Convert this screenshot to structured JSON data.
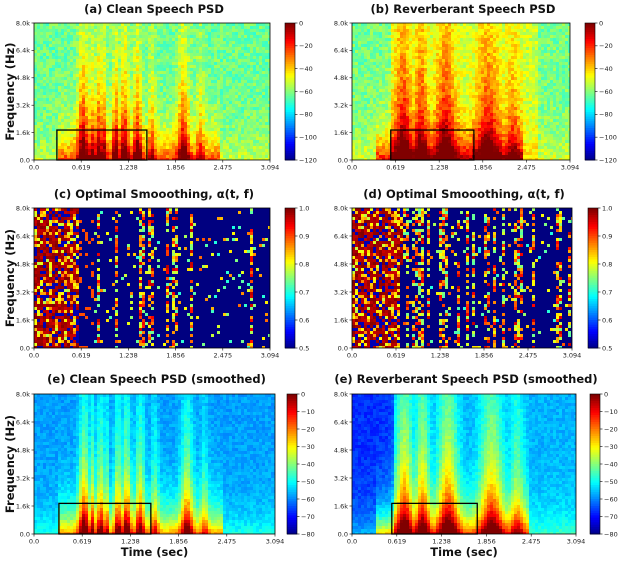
{
  "chart_data": [
    {
      "id": "a",
      "type": "heatmap",
      "title": "(a) Clean Speech PSD",
      "ylabel": "Frequency (Hz)",
      "xlabel": "",
      "x_ticks": [
        "0.0",
        "0.619",
        "1.238",
        "1.856",
        "2.475",
        "3.094"
      ],
      "y_ticks": [
        "0.0",
        "1.6k",
        "3.2k",
        "4.8k",
        "6.4k",
        "8.0k"
      ],
      "xlim": [
        0,
        3.094
      ],
      "ylim": [
        0,
        8000
      ],
      "colorbar": {
        "ticks": [
          0,
          -20,
          -40,
          -60,
          -80,
          -100,
          -120
        ],
        "range": [
          -120,
          0
        ],
        "colormap": "jet"
      },
      "highlight_box": {
        "x": [
          0.3,
          1.48
        ],
        "y": [
          0,
          1750
        ]
      }
    },
    {
      "id": "b",
      "type": "heatmap",
      "title": "(b) Reverberant Speech PSD",
      "ylabel": "",
      "xlabel": "",
      "x_ticks": [
        "0.0",
        "0.619",
        "1.238",
        "1.856",
        "2.475",
        "3.094"
      ],
      "y_ticks": [
        "0.0",
        "1.6k",
        "3.2k",
        "4.8k",
        "6.4k",
        "8.0k"
      ],
      "xlim": [
        0,
        3.094
      ],
      "ylim": [
        0,
        8000
      ],
      "colorbar": {
        "ticks": [
          0,
          -20,
          -40,
          -60,
          -80,
          -100,
          -120
        ],
        "range": [
          -120,
          0
        ],
        "colormap": "jet"
      },
      "highlight_box": {
        "x": [
          0.55,
          1.73
        ],
        "y": [
          0,
          1750
        ]
      }
    },
    {
      "id": "c",
      "type": "heatmap",
      "title": "(c) Optimal Smooothing, α(t, f)",
      "ylabel": "Frequency (Hz)",
      "xlabel": "",
      "x_ticks": [
        "0.0",
        "0.619",
        "1.238",
        "1.856",
        "2.475",
        "3.094"
      ],
      "y_ticks": [
        "0.0",
        "1.6k",
        "3.2k",
        "4.8k",
        "6.4k",
        "8.0k"
      ],
      "xlim": [
        0,
        3.094
      ],
      "ylim": [
        0,
        8000
      ],
      "colorbar": {
        "ticks": [
          1.0,
          0.9,
          0.8,
          0.7,
          0.6,
          0.5
        ],
        "range": [
          0.5,
          1.0
        ],
        "colormap": "jet"
      }
    },
    {
      "id": "d",
      "type": "heatmap",
      "title": "(d) Optimal Smooothing, α(t, f)",
      "ylabel": "",
      "xlabel": "",
      "x_ticks": [
        "0.0",
        "0.619",
        "1.238",
        "1.856",
        "2.475",
        "3.094"
      ],
      "y_ticks": [
        "0.0",
        "1.6k",
        "3.2k",
        "4.8k",
        "6.4k",
        "8.0k"
      ],
      "xlim": [
        0,
        3.094
      ],
      "ylim": [
        0,
        8000
      ],
      "colorbar": {
        "ticks": [
          1.0,
          0.9,
          0.8,
          0.7,
          0.6,
          0.5
        ],
        "range": [
          0.5,
          1.0
        ],
        "colormap": "jet"
      }
    },
    {
      "id": "e",
      "type": "heatmap",
      "title": "(e) Clean Speech PSD (smoothed)",
      "ylabel": "Frequency (Hz)",
      "xlabel": "Time (sec)",
      "x_ticks": [
        "0.0",
        "0.619",
        "1.238",
        "1.856",
        "2.475",
        "3.094"
      ],
      "y_ticks": [
        "0.0",
        "1.6k",
        "3.2k",
        "4.8k",
        "6.4k",
        "8.0k"
      ],
      "xlim": [
        0,
        3.094
      ],
      "ylim": [
        0,
        8000
      ],
      "colorbar": {
        "ticks": [
          0,
          -10,
          -20,
          -30,
          -40,
          -50,
          -60,
          -70,
          -80
        ],
        "range": [
          -80,
          0
        ],
        "colormap": "jet"
      },
      "highlight_box": {
        "x": [
          0.32,
          1.5
        ],
        "y": [
          0,
          1750
        ]
      }
    },
    {
      "id": "f",
      "type": "heatmap",
      "title": "(e) Reverberant Speech PSD (smoothed)",
      "ylabel": "",
      "xlabel": "Time (sec)",
      "x_ticks": [
        "0.0",
        "0.619",
        "1.238",
        "1.856",
        "2.475",
        "3.094"
      ],
      "y_ticks": [
        "0.0",
        "1.6k",
        "3.2k",
        "4.8k",
        "6.4k",
        "8.0k"
      ],
      "xlim": [
        0,
        3.094
      ],
      "ylim": [
        0,
        8000
      ],
      "colorbar": {
        "ticks": [
          0,
          -10,
          -20,
          -30,
          -40,
          -50,
          -60,
          -70,
          -80
        ],
        "range": [
          -80,
          0
        ],
        "colormap": "jet"
      },
      "highlight_box": {
        "x": [
          0.55,
          1.73
        ],
        "y": [
          0,
          1750
        ]
      }
    }
  ]
}
